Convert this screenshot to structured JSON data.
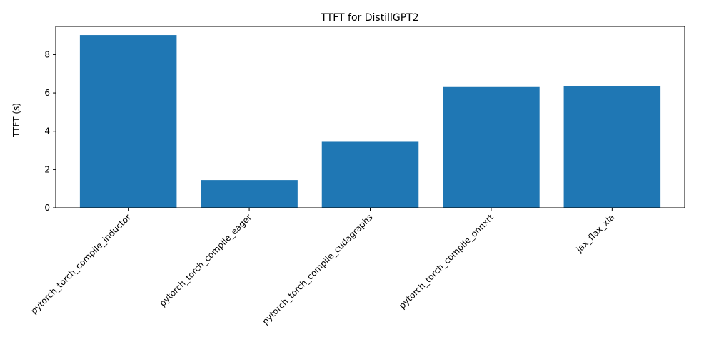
{
  "chart_data": {
    "type": "bar",
    "title": "TTFT for DistillGPT2",
    "xlabel": "",
    "ylabel": "TTFT (s)",
    "categories": [
      "pytorch_torch_compile_inductor",
      "pytorch_torch_compile_eager",
      "pytorch_torch_compile_cudagraphs",
      "pytorch_torch_compile_onnxrt",
      "jax_flax_xla"
    ],
    "values": [
      9.02,
      1.45,
      3.45,
      6.31,
      6.34
    ],
    "ylim": [
      0,
      9.47
    ],
    "yticks": [
      0,
      2,
      4,
      6,
      8
    ],
    "bar_color": "#1f77b4",
    "grid": false,
    "legend": "none",
    "xtick_rotation": 45
  }
}
